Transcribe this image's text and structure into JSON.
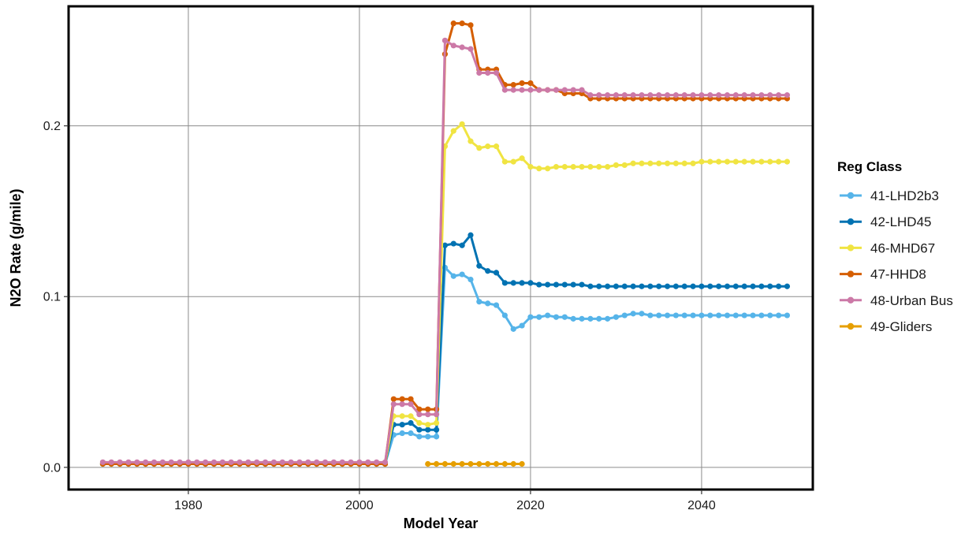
{
  "chart_data": {
    "type": "line",
    "xlabel": "Model Year",
    "ylabel": "N2O Rate (g/mile)",
    "xlim": [
      1966,
      2053
    ],
    "ylim": [
      -0.013,
      0.27
    ],
    "x_ticks": [
      1980,
      2000,
      2020,
      2040
    ],
    "y_ticks": [
      0.0,
      0.1,
      0.2
    ],
    "y_tick_labels": [
      "0.0",
      "0.1",
      "0.2"
    ],
    "grid": true,
    "legend": {
      "title": "Reg Class",
      "position": "right"
    },
    "x": [
      1970,
      1971,
      1972,
      1973,
      1974,
      1975,
      1976,
      1977,
      1978,
      1979,
      1980,
      1981,
      1982,
      1983,
      1984,
      1985,
      1986,
      1987,
      1988,
      1989,
      1990,
      1991,
      1992,
      1993,
      1994,
      1995,
      1996,
      1997,
      1998,
      1999,
      2000,
      2001,
      2002,
      2003,
      2004,
      2005,
      2006,
      2007,
      2008,
      2009,
      2010,
      2011,
      2012,
      2013,
      2014,
      2015,
      2016,
      2017,
      2018,
      2019,
      2020,
      2021,
      2022,
      2023,
      2024,
      2025,
      2026,
      2027,
      2028,
      2029,
      2030,
      2031,
      2032,
      2033,
      2034,
      2035,
      2036,
      2037,
      2038,
      2039,
      2040,
      2041,
      2042,
      2043,
      2044,
      2045,
      2046,
      2047,
      2048,
      2049,
      2050
    ],
    "series": [
      {
        "name": "41-LHD2b3",
        "color": "#56B4E9",
        "values": [
          0.002,
          0.002,
          0.002,
          0.002,
          0.002,
          0.002,
          0.002,
          0.002,
          0.002,
          0.002,
          0.002,
          0.002,
          0.002,
          0.002,
          0.002,
          0.002,
          0.002,
          0.002,
          0.002,
          0.002,
          0.002,
          0.002,
          0.002,
          0.002,
          0.002,
          0.002,
          0.002,
          0.002,
          0.002,
          0.002,
          0.002,
          0.002,
          0.002,
          0.002,
          0.019,
          0.02,
          0.02,
          0.018,
          0.018,
          0.018,
          0.117,
          0.112,
          0.113,
          0.11,
          0.097,
          0.096,
          0.095,
          0.089,
          0.081,
          0.083,
          0.088,
          0.088,
          0.089,
          0.088,
          0.088,
          0.087,
          0.087,
          0.087,
          0.087,
          0.087,
          0.088,
          0.089,
          0.09,
          0.09,
          0.089,
          0.089,
          0.089,
          0.089,
          0.089,
          0.089,
          0.089,
          0.089,
          0.089,
          0.089,
          0.089,
          0.089,
          0.089,
          0.089,
          0.089,
          0.089,
          0.089
        ]
      },
      {
        "name": "42-LHD45",
        "color": "#0072B2",
        "values": [
          0.002,
          0.002,
          0.002,
          0.002,
          0.002,
          0.002,
          0.002,
          0.002,
          0.002,
          0.002,
          0.002,
          0.002,
          0.002,
          0.002,
          0.002,
          0.002,
          0.002,
          0.002,
          0.002,
          0.002,
          0.002,
          0.002,
          0.002,
          0.002,
          0.002,
          0.002,
          0.002,
          0.002,
          0.002,
          0.002,
          0.002,
          0.002,
          0.002,
          0.002,
          0.025,
          0.025,
          0.026,
          0.022,
          0.022,
          0.022,
          0.13,
          0.131,
          0.13,
          0.136,
          0.118,
          0.115,
          0.114,
          0.108,
          0.108,
          0.108,
          0.108,
          0.107,
          0.107,
          0.107,
          0.107,
          0.107,
          0.107,
          0.106,
          0.106,
          0.106,
          0.106,
          0.106,
          0.106,
          0.106,
          0.106,
          0.106,
          0.106,
          0.106,
          0.106,
          0.106,
          0.106,
          0.106,
          0.106,
          0.106,
          0.106,
          0.106,
          0.106,
          0.106,
          0.106,
          0.106,
          0.106
        ]
      },
      {
        "name": "46-MHD67",
        "color": "#F0E442",
        "values": [
          0.002,
          0.002,
          0.002,
          0.002,
          0.002,
          0.002,
          0.002,
          0.002,
          0.002,
          0.002,
          0.002,
          0.002,
          0.002,
          0.002,
          0.002,
          0.002,
          0.002,
          0.002,
          0.002,
          0.002,
          0.002,
          0.002,
          0.002,
          0.002,
          0.002,
          0.002,
          0.002,
          0.002,
          0.002,
          0.002,
          0.002,
          0.002,
          0.002,
          0.002,
          0.03,
          0.03,
          0.03,
          0.026,
          0.025,
          0.026,
          0.188,
          0.197,
          0.201,
          0.191,
          0.187,
          0.188,
          0.188,
          0.179,
          0.179,
          0.181,
          0.176,
          0.175,
          0.175,
          0.176,
          0.176,
          0.176,
          0.176,
          0.176,
          0.176,
          0.176,
          0.177,
          0.177,
          0.178,
          0.178,
          0.178,
          0.178,
          0.178,
          0.178,
          0.178,
          0.178,
          0.179,
          0.179,
          0.179,
          0.179,
          0.179,
          0.179,
          0.179,
          0.179,
          0.179,
          0.179,
          0.179
        ]
      },
      {
        "name": "47-HHD8",
        "color": "#D55E00",
        "values": [
          0.002,
          0.002,
          0.002,
          0.002,
          0.002,
          0.002,
          0.002,
          0.002,
          0.002,
          0.002,
          0.002,
          0.002,
          0.002,
          0.002,
          0.002,
          0.002,
          0.002,
          0.002,
          0.002,
          0.002,
          0.002,
          0.002,
          0.002,
          0.002,
          0.002,
          0.002,
          0.002,
          0.002,
          0.002,
          0.002,
          0.002,
          0.002,
          0.002,
          0.002,
          0.04,
          0.04,
          0.04,
          0.034,
          0.034,
          0.034,
          0.242,
          0.26,
          0.26,
          0.259,
          0.233,
          0.233,
          0.233,
          0.224,
          0.224,
          0.225,
          0.225,
          0.221,
          0.221,
          0.221,
          0.219,
          0.219,
          0.219,
          0.216,
          0.216,
          0.216,
          0.216,
          0.216,
          0.216,
          0.216,
          0.216,
          0.216,
          0.216,
          0.216,
          0.216,
          0.216,
          0.216,
          0.216,
          0.216,
          0.216,
          0.216,
          0.216,
          0.216,
          0.216,
          0.216,
          0.216,
          0.216
        ]
      },
      {
        "name": "48-Urban Bus",
        "color": "#CC79A7",
        "values": [
          0.003,
          0.003,
          0.003,
          0.003,
          0.003,
          0.003,
          0.003,
          0.003,
          0.003,
          0.003,
          0.003,
          0.003,
          0.003,
          0.003,
          0.003,
          0.003,
          0.003,
          0.003,
          0.003,
          0.003,
          0.003,
          0.003,
          0.003,
          0.003,
          0.003,
          0.003,
          0.003,
          0.003,
          0.003,
          0.003,
          0.003,
          0.003,
          0.003,
          0.003,
          0.037,
          0.037,
          0.037,
          0.031,
          0.031,
          0.031,
          0.25,
          0.247,
          0.246,
          0.245,
          0.231,
          0.231,
          0.231,
          0.221,
          0.221,
          0.221,
          0.221,
          0.221,
          0.221,
          0.221,
          0.221,
          0.221,
          0.221,
          0.218,
          0.218,
          0.218,
          0.218,
          0.218,
          0.218,
          0.218,
          0.218,
          0.218,
          0.218,
          0.218,
          0.218,
          0.218,
          0.218,
          0.218,
          0.218,
          0.218,
          0.218,
          0.218,
          0.218,
          0.218,
          0.218,
          0.218,
          0.218
        ]
      },
      {
        "name": "49-Gliders",
        "color": "#E69F00",
        "x": [
          2008,
          2009,
          2010,
          2011,
          2012,
          2013,
          2014,
          2015,
          2016,
          2017,
          2018,
          2019
        ],
        "values": [
          0.002,
          0.002,
          0.002,
          0.002,
          0.002,
          0.002,
          0.002,
          0.002,
          0.002,
          0.002,
          0.002,
          0.002
        ]
      }
    ]
  }
}
